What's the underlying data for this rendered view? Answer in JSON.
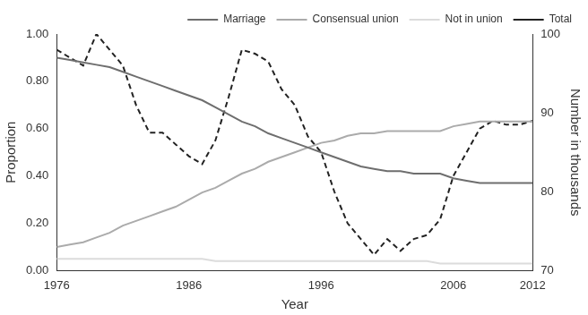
{
  "chart_data": {
    "type": "line",
    "x_label": "Year",
    "y_label": "Proportion",
    "y2_label": "Number in thousands",
    "x": [
      1976,
      1977,
      1978,
      1979,
      1980,
      1981,
      1982,
      1983,
      1984,
      1985,
      1986,
      1987,
      1988,
      1989,
      1990,
      1991,
      1992,
      1993,
      1994,
      1995,
      1996,
      1997,
      1998,
      1999,
      2000,
      2001,
      2002,
      2003,
      2004,
      2005,
      2006,
      2007,
      2008,
      2009,
      2010,
      2011,
      2012
    ],
    "xlim": [
      1976,
      2012
    ],
    "xticks": [
      1976,
      1986,
      1996,
      2006,
      2012
    ],
    "ylim": [
      0,
      1
    ],
    "yticks": [
      {
        "value": 0,
        "label": "0.00"
      },
      {
        "value": 0.2,
        "label": "0.20"
      },
      {
        "value": 0.4,
        "label": "0.40"
      },
      {
        "value": 0.6,
        "label": "0.60"
      },
      {
        "value": 0.8,
        "label": "0.80"
      },
      {
        "value": 1,
        "label": "1.00"
      }
    ],
    "y2lim": [
      70,
      100
    ],
    "y2ticks": [
      70,
      80,
      90,
      100
    ],
    "grid": false,
    "legend": "top-right",
    "series": [
      {
        "name": "Marriage",
        "color": "#6e6e6e",
        "line_style": "solid",
        "values": [
          0.9,
          0.89,
          0.88,
          0.87,
          0.86,
          0.84,
          0.82,
          0.8,
          0.78,
          0.76,
          0.74,
          0.72,
          0.69,
          0.66,
          0.63,
          0.61,
          0.58,
          0.56,
          0.54,
          0.52,
          0.5,
          0.48,
          0.46,
          0.44,
          0.43,
          0.42,
          0.42,
          0.41,
          0.41,
          0.41,
          0.39,
          0.38,
          0.37,
          0.37,
          0.37,
          0.37,
          0.37
        ]
      },
      {
        "name": "Consensual union",
        "color": "#ababab",
        "line_style": "solid",
        "values": [
          0.1,
          0.11,
          0.12,
          0.14,
          0.16,
          0.19,
          0.21,
          0.23,
          0.25,
          0.27,
          0.3,
          0.33,
          0.35,
          0.38,
          0.41,
          0.43,
          0.46,
          0.48,
          0.5,
          0.52,
          0.54,
          0.55,
          0.57,
          0.58,
          0.58,
          0.59,
          0.59,
          0.59,
          0.59,
          0.59,
          0.61,
          0.62,
          0.63,
          0.63,
          0.63,
          0.63,
          0.63
        ]
      },
      {
        "name": "Not in union",
        "color": "#dcdcdc",
        "line_style": "solid",
        "values": [
          0.05,
          0.05,
          0.05,
          0.05,
          0.05,
          0.05,
          0.05,
          0.05,
          0.05,
          0.05,
          0.05,
          0.05,
          0.04,
          0.04,
          0.04,
          0.04,
          0.04,
          0.04,
          0.04,
          0.04,
          0.04,
          0.04,
          0.04,
          0.04,
          0.04,
          0.04,
          0.04,
          0.04,
          0.04,
          0.03,
          0.03,
          0.03,
          0.03,
          0.03,
          0.03,
          0.03,
          0.03
        ]
      },
      {
        "name": "Total",
        "color": "#222222",
        "line_style": "dashed",
        "axis": "y2",
        "values": [
          98,
          97,
          96,
          100,
          98,
          96,
          91,
          87.5,
          87.5,
          86,
          84.5,
          83.5,
          86.5,
          92,
          98,
          97.5,
          96.5,
          93,
          91,
          87,
          85,
          80,
          76,
          74,
          72,
          74,
          72.5,
          74,
          74.5,
          76.5,
          82,
          85,
          88,
          89,
          88.5,
          88.5,
          89
        ]
      }
    ]
  }
}
